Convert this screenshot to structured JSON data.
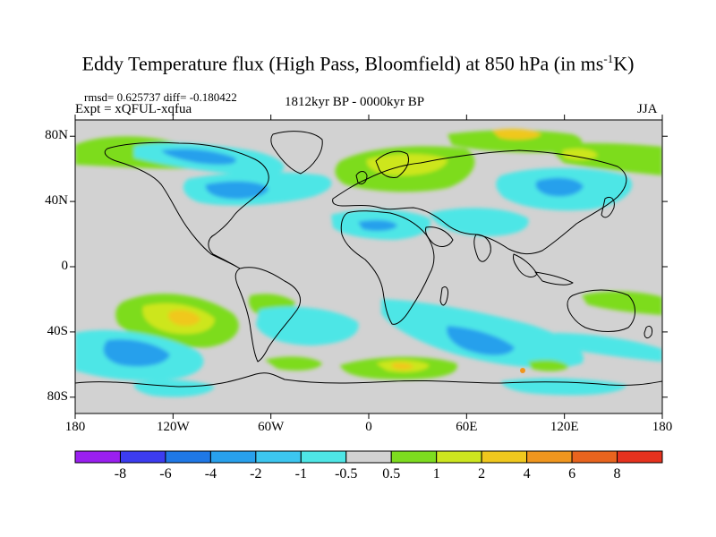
{
  "header": {
    "title_main": "Eddy Temperature flux (High Pass, Bloomfield) at 850 hPa (in ms",
    "title_sup": "-1",
    "title_end": "K)",
    "stats": "rmsd= 0.625737 diff= -0.180422",
    "expt": "Expt = xQFUL-xqfua",
    "period": "1812kyr BP - 0000kyr BP",
    "season": "JJA"
  },
  "axes": {
    "lat_ticks": [
      "80N",
      "40N",
      "0",
      "40S",
      "80S"
    ],
    "lon_ticks": [
      "180",
      "120W",
      "60W",
      "0",
      "60E",
      "120E",
      "180"
    ]
  },
  "colorbar": {
    "labels": [
      "-8",
      "-6",
      "-4",
      "-2",
      "-1",
      "-0.5",
      "0.5",
      "1",
      "2",
      "4",
      "6",
      "8"
    ],
    "colors": [
      "#9a1ff0",
      "#3c3cf0",
      "#1f78e6",
      "#28a0ec",
      "#3cc6f0",
      "#4ee6e6",
      "#d2d2d2",
      "#7ddc1f",
      "#cde61f",
      "#f0c81e",
      "#f0961e",
      "#e8641e",
      "#e6321e"
    ]
  },
  "map": {
    "background_color": "#d2d2d2",
    "lat_range": [
      -90,
      90
    ],
    "lon_range": [
      -180,
      180
    ]
  }
}
